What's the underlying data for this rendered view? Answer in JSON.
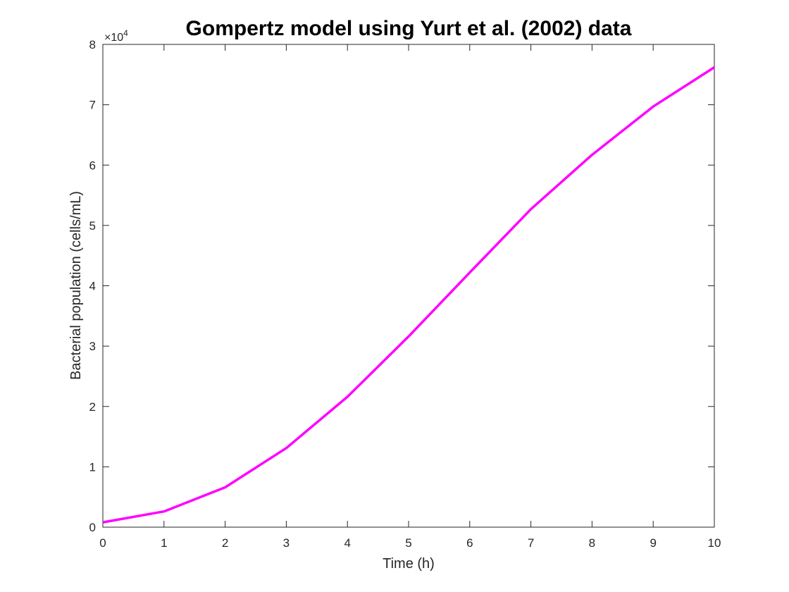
{
  "chart_data": {
    "type": "line",
    "title": "Gompertz model using Yurt et al. (2002) data",
    "xlabel": "Time (h)",
    "ylabel": "Bacterial population (cells/mL)",
    "y_exponent_label": {
      "base": "×10",
      "power": "4"
    },
    "y_multiplier": 10000,
    "xlim": [
      0,
      10
    ],
    "ylim": [
      0,
      8
    ],
    "x_ticks": [
      "0",
      "1",
      "2",
      "3",
      "4",
      "5",
      "6",
      "7",
      "8",
      "9",
      "10"
    ],
    "y_ticks": [
      "0",
      "1",
      "2",
      "3",
      "4",
      "5",
      "6",
      "7",
      "8"
    ],
    "grid": false,
    "series": [
      {
        "color": "#ff00ff",
        "x": [
          0,
          1,
          2,
          3,
          4,
          5,
          6,
          7,
          8,
          9,
          10
        ],
        "y": [
          0.08,
          0.26,
          0.66,
          1.31,
          2.16,
          3.16,
          4.22,
          5.27,
          6.17,
          6.97,
          7.62
        ]
      }
    ]
  }
}
